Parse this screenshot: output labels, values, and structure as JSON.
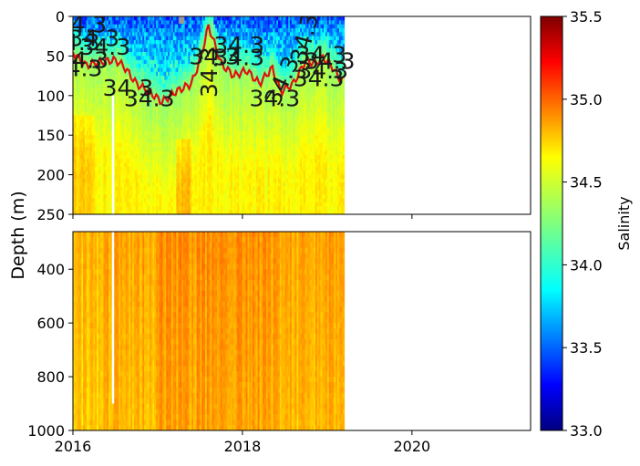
{
  "chart_data": [
    {
      "panel": "upper",
      "type": "heatmap",
      "variable": "salinity",
      "xlabel": "",
      "ylabel": "Depth (m)",
      "xlim": [
        2016,
        2021.4
      ],
      "ylim": [
        250,
        0
      ],
      "y_inverted": true,
      "data_extent_x": [
        2016,
        2019.2
      ],
      "xticks": [
        "2016",
        "2018",
        "2020"
      ],
      "xticks_shown": false,
      "yticks": [
        "0",
        "50",
        "100",
        "150",
        "200",
        "250"
      ],
      "ytick_values": [
        0,
        50,
        100,
        150,
        200,
        250
      ],
      "grid": false,
      "contour": {
        "level": 34.3,
        "color": "#e01010",
        "label": "34.3",
        "depth_by_time": [
          {
            "x": 2016.0,
            "y": 45
          },
          {
            "x": 2016.15,
            "y": 62
          },
          {
            "x": 2016.3,
            "y": 58
          },
          {
            "x": 2016.5,
            "y": 55
          },
          {
            "x": 2016.6,
            "y": 63
          },
          {
            "x": 2016.75,
            "y": 85
          },
          {
            "x": 2016.9,
            "y": 95
          },
          {
            "x": 2017.05,
            "y": 108
          },
          {
            "x": 2017.2,
            "y": 96
          },
          {
            "x": 2017.4,
            "y": 85
          },
          {
            "x": 2017.5,
            "y": 55
          },
          {
            "x": 2017.6,
            "y": 12
          },
          {
            "x": 2017.75,
            "y": 60
          },
          {
            "x": 2017.9,
            "y": 75
          },
          {
            "x": 2018.05,
            "y": 68
          },
          {
            "x": 2018.2,
            "y": 85
          },
          {
            "x": 2018.35,
            "y": 65
          },
          {
            "x": 2018.45,
            "y": 95
          },
          {
            "x": 2018.6,
            "y": 85
          },
          {
            "x": 2018.75,
            "y": 55
          },
          {
            "x": 2018.85,
            "y": 60
          },
          {
            "x": 2018.95,
            "y": 52
          },
          {
            "x": 2019.05,
            "y": 62
          },
          {
            "x": 2019.15,
            "y": 80
          }
        ]
      },
      "contour_labels": [
        {
          "text": "34.3",
          "x": 2016.1,
          "y": 10,
          "rotate": 0
        },
        {
          "text": "34.3",
          "x": 2016.02,
          "y": 32,
          "rotate": 0
        },
        {
          "text": "34.3",
          "x": 2016.25,
          "y": 27,
          "rotate": 0
        },
        {
          "text": "34.3",
          "x": 2016.12,
          "y": 55,
          "rotate": 0
        },
        {
          "text": "34.3",
          "x": 2016.38,
          "y": 38,
          "rotate": 0
        },
        {
          "text": "34.3",
          "x": 2016.05,
          "y": 65,
          "rotate": 0
        },
        {
          "text": "34.3",
          "x": 2016.65,
          "y": 90,
          "rotate": 0
        },
        {
          "text": "34.3",
          "x": 2016.9,
          "y": 103,
          "rotate": 0
        },
        {
          "text": "34.3",
          "x": 2017.7,
          "y": 60,
          "rotate": -90
        },
        {
          "text": "34.3",
          "x": 2017.67,
          "y": 50,
          "rotate": 0
        },
        {
          "text": "34.3",
          "x": 2017.96,
          "y": 36,
          "rotate": 0
        },
        {
          "text": "34.3",
          "x": 2017.96,
          "y": 51,
          "rotate": 0
        },
        {
          "text": "34.3",
          "x": 2018.38,
          "y": 103,
          "rotate": 0
        },
        {
          "text": "34.3",
          "x": 2018.55,
          "y": 75,
          "rotate": -65
        },
        {
          "text": "34.3",
          "x": 2018.82,
          "y": 20,
          "rotate": -75
        },
        {
          "text": "34.3",
          "x": 2018.93,
          "y": 48,
          "rotate": 0
        },
        {
          "text": "34.3",
          "x": 2019.03,
          "y": 56,
          "rotate": 0
        },
        {
          "text": "34.3",
          "x": 2018.95,
          "y": 68,
          "rotate": 0
        },
        {
          "text": "34.3",
          "x": 2018.9,
          "y": 78,
          "rotate": 0
        }
      ]
    },
    {
      "panel": "lower",
      "type": "heatmap",
      "variable": "salinity",
      "xlabel": "",
      "ylabel": "Depth (m)",
      "xlim": [
        2016,
        2021.4
      ],
      "ylim": [
        1000,
        260
      ],
      "y_inverted": true,
      "data_extent_x": [
        2016,
        2019.2
      ],
      "xticks": [
        "2016",
        "2018",
        "2020"
      ],
      "xtick_values": [
        2016,
        2018,
        2020
      ],
      "yticks": [
        "400",
        "600",
        "800",
        "1000"
      ],
      "ytick_values": [
        400,
        600,
        800,
        1000
      ],
      "grid": false
    },
    {
      "type": "colorbar",
      "label": "Salinity",
      "colormap": "jet",
      "range": [
        33.0,
        35.5
      ],
      "ticks": [
        "33.0",
        "33.5",
        "34.0",
        "34.5",
        "35.0",
        "35.5"
      ],
      "tick_values": [
        33.0,
        33.5,
        34.0,
        34.5,
        35.0,
        35.5
      ]
    }
  ]
}
